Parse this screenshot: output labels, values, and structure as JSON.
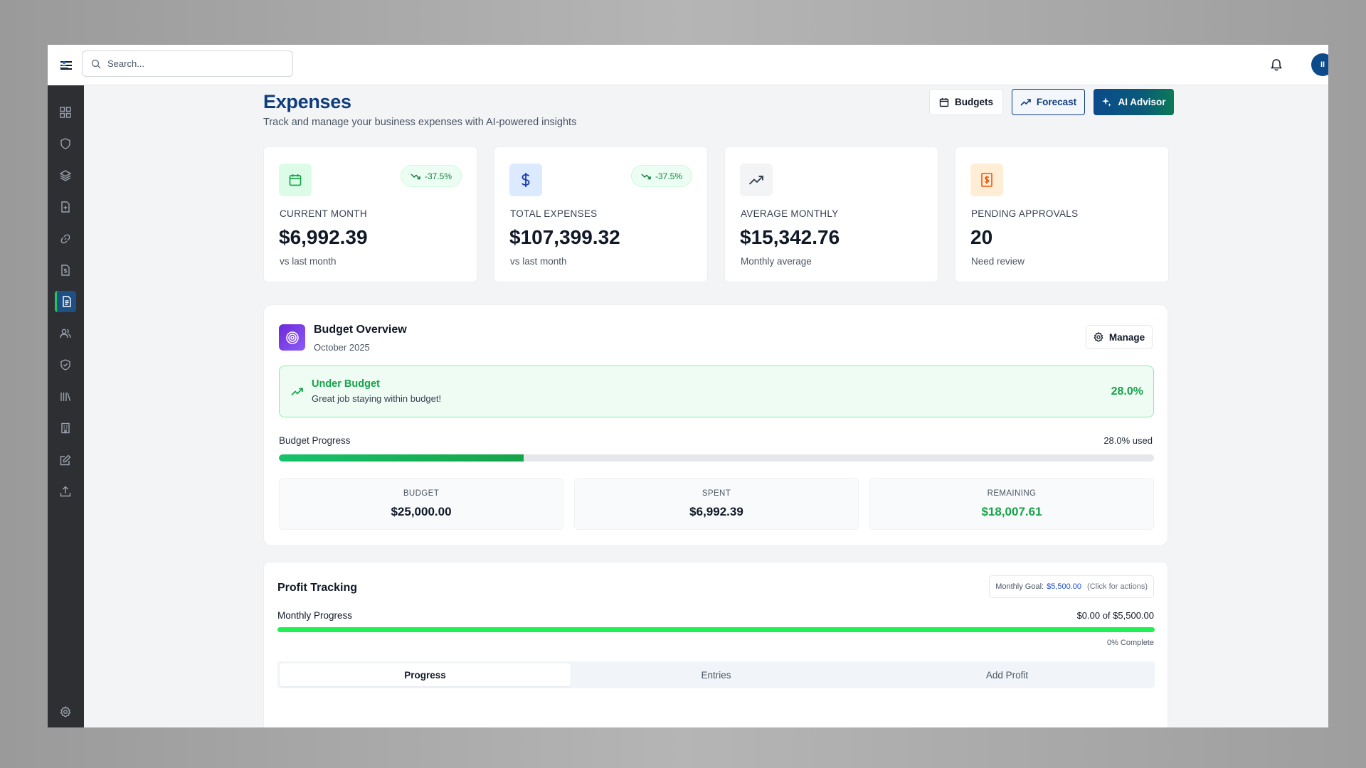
{
  "search": {
    "placeholder": "Search..."
  },
  "user": {
    "avatar_initials": "II"
  },
  "page": {
    "title": "Expenses",
    "subtitle": "Track and manage your business expenses with AI-powered insights"
  },
  "header_actions": {
    "budgets_label": "Budgets",
    "forecast_label": "Forecast",
    "ai_advisor_label": "AI Advisor"
  },
  "stats": [
    {
      "label": "CURRENT MONTH",
      "value": "$6,992.39",
      "sub": "vs last month",
      "badge": "-37.5%",
      "icon": "calendar-icon",
      "color": "#16a34a"
    },
    {
      "label": "TOTAL EXPENSES",
      "value": "$107,399.32",
      "sub": "vs last month",
      "badge": "-37.5%",
      "icon": "dollar-icon",
      "color": "#1e40af"
    },
    {
      "label": "AVERAGE MONTHLY",
      "value": "$15,342.76",
      "sub": "Monthly average",
      "icon": "trending-up-icon",
      "color": "#374151"
    },
    {
      "label": "PENDING APPROVALS",
      "value": "20",
      "sub": "Need review",
      "icon": "receipt-icon",
      "color": "#ea580c"
    }
  ],
  "budget_overview": {
    "title": "Budget Overview",
    "date": "October 2025",
    "manage_label": "Manage",
    "status_title": "Under Budget",
    "status_sub": "Great job staying within budget!",
    "status_pct": "28.0%",
    "progress_label": "Budget Progress",
    "progress_used": "28.0% used",
    "progress_fraction": 0.28,
    "boxes": [
      {
        "label": "BUDGET",
        "value": "$25,000.00",
        "color": "#111827"
      },
      {
        "label": "SPENT",
        "value": "$6,992.39",
        "color": "#111827"
      },
      {
        "label": "REMAINING",
        "value": "$18,007.61",
        "color": "#16a34a"
      }
    ]
  },
  "profit_tracking": {
    "title": "Profit Tracking",
    "goal_prefix": "Monthly Goal:",
    "goal_amount": "$5,500.00",
    "goal_hint": "(Click for actions)",
    "progress_label": "Monthly Progress",
    "progress_amount": "$0.00 of $5,500.00",
    "complete_text": "0% Complete",
    "tabs": [
      "Progress",
      "Entries",
      "Add Profit"
    ]
  },
  "colors": {
    "accent": "#0f3d7a",
    "success": "#16a34a",
    "sidebar": "#2d2f33"
  }
}
